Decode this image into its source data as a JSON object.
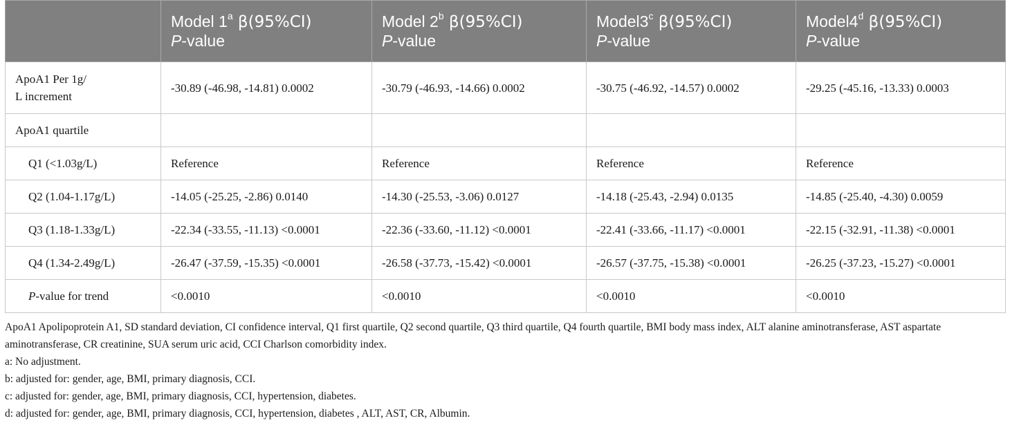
{
  "table": {
    "headers": [
      {
        "label": "",
        "sup": "",
        "beta_ci": "",
        "pv_italic": "",
        "pv_rest": ""
      },
      {
        "label": "Model 1",
        "sup": "a",
        "beta_ci": " β(95%CI)",
        "pv_italic": "P",
        "pv_rest": "-value"
      },
      {
        "label": "Model 2",
        "sup": "b",
        "beta_ci": " β(95%CI)",
        "pv_italic": "P",
        "pv_rest": "-value"
      },
      {
        "label": "Model3",
        "sup": "c",
        "beta_ci": " β(95%CI)",
        "pv_italic": "P",
        "pv_rest": "-value"
      },
      {
        "label": "Model4",
        "sup": "d",
        "beta_ci": " β(95%CI)",
        "pv_italic": "P",
        "pv_rest": "-value"
      }
    ],
    "rows": [
      {
        "label_line1": "ApoA1 Per 1g/",
        "label_line2": "L increment",
        "cells": [
          "-30.89 (-46.98, -14.81) 0.0002",
          "-30.79 (-46.93, -14.66) 0.0002",
          "-30.75 (-46.92, -14.57) 0.0002",
          "-29.25 (-45.16, -13.33) 0.0003"
        ]
      },
      {
        "label": "ApoA1 quartile",
        "cells": [
          "",
          "",
          "",
          ""
        ]
      },
      {
        "label": "Q1 (<1.03g/L)",
        "cells": [
          "Reference",
          "Reference",
          "Reference",
          "Reference"
        ]
      },
      {
        "label": "Q2 (1.04-1.17g/L)",
        "cells": [
          "-14.05 (-25.25, -2.86) 0.0140",
          "-14.30 (-25.53, -3.06) 0.0127",
          "-14.18 (-25.43, -2.94) 0.0135",
          "-14.85 (-25.40, -4.30) 0.0059"
        ]
      },
      {
        "label": "Q3 (1.18-1.33g/L)",
        "cells": [
          "-22.34 (-33.55, -11.13) <0.0001",
          "-22.36 (-33.60, -11.12) <0.0001",
          "-22.41 (-33.66, -11.17) <0.0001",
          "-22.15 (-32.91, -11.38) <0.0001"
        ]
      },
      {
        "label": "Q4 (1.34-2.49g/L)",
        "cells": [
          "-26.47 (-37.59, -15.35) <0.0001",
          "-26.58 (-37.73, -15.42) <0.0001",
          "-26.57 (-37.75, -15.38) <0.0001",
          "-26.25 (-37.23, -15.27) <0.0001"
        ]
      },
      {
        "label_italic": "P",
        "label_rest": "-value for trend",
        "cells": [
          "<0.0010",
          "<0.0010",
          "<0.0010",
          "<0.0010"
        ]
      }
    ]
  },
  "footnotes": {
    "abbreviations": "ApoA1 Apolipoprotein A1, SD standard deviation, CI confidence interval, Q1 first quartile, Q2 second quartile, Q3 third quartile, Q4 fourth quartile, BMI body mass index, ALT alanine aminotransferase, AST aspartate aminotransferase, CR creatinine, SUA serum uric acid, CCI Charlson comorbidity index.",
    "a": "a: No adjustment.",
    "b": "b: adjusted for: gender, age, BMI, primary diagnosis, CCI.",
    "c": "c: adjusted for: gender, age, BMI, primary diagnosis, CCI, hypertension, diabetes.",
    "d": "d: adjusted for: gender, age, BMI, primary diagnosis, CCI, hypertension, diabetes , ALT, AST, CR, Albumin."
  }
}
